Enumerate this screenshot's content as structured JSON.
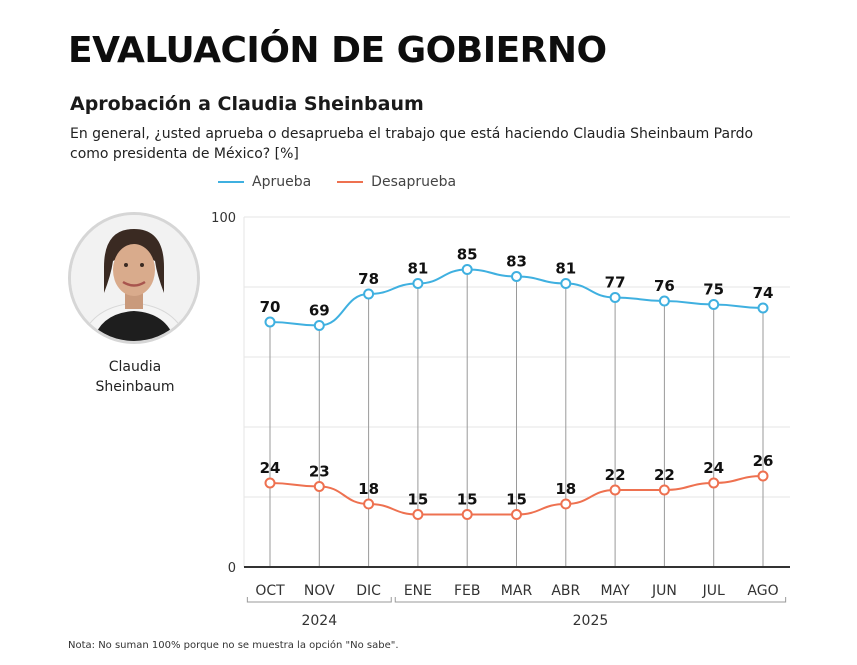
{
  "header": {
    "title": "EVALUACIÓN DE GOBIERNO",
    "subtitle": "Aprobación a Claudia Sheinbaum",
    "question": "En general, ¿usted aprueba o desaprueba el trabajo que está haciendo Claudia Sheinbaum Pardo como presidenta de México? [%]"
  },
  "portrait": {
    "name": "Claudia Sheinbaum",
    "icon": "portrait-photo"
  },
  "footnote": "Nota: No suman 100% porque no se muestra la opción \"No sabe\".",
  "colors": {
    "aprueba": "#3fb0e0",
    "desaprueba": "#ee7150",
    "axis": "#333333",
    "grid": "#e6e6e6",
    "vline": "#9a9a9a"
  },
  "chart_data": {
    "type": "line",
    "title": "Aprobación a Claudia Sheinbaum",
    "categories": [
      "OCT",
      "NOV",
      "DIC",
      "ENE",
      "FEB",
      "MAR",
      "ABR",
      "MAY",
      "JUN",
      "JUL",
      "AGO"
    ],
    "year_groups": [
      {
        "label": "2024",
        "from": 0,
        "to": 2
      },
      {
        "label": "2025",
        "from": 3,
        "to": 10
      }
    ],
    "series": [
      {
        "name": "Aprueba",
        "color": "#3fb0e0",
        "values": [
          70,
          69,
          78,
          81,
          85,
          83,
          81,
          77,
          76,
          75,
          74
        ]
      },
      {
        "name": "Desaprueba",
        "color": "#ee7150",
        "values": [
          24,
          23,
          18,
          15,
          15,
          15,
          18,
          22,
          22,
          24,
          26
        ]
      }
    ],
    "ylim": [
      0,
      100
    ],
    "yticks": [
      "0",
      "100"
    ],
    "grid": true,
    "legend": "top-left",
    "xlabel": "",
    "ylabel": ""
  }
}
